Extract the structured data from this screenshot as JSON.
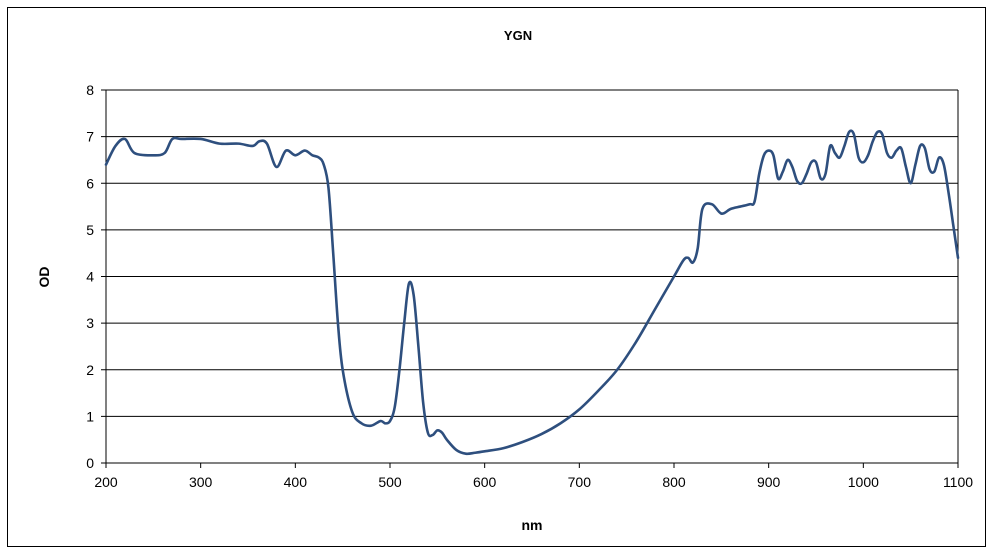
{
  "chart_data": {
    "type": "line",
    "title": "YGN",
    "xlabel": "nm",
    "ylabel": "OD",
    "xlim": [
      200,
      1100
    ],
    "ylim": [
      0,
      8
    ],
    "xticks": [
      200,
      300,
      400,
      500,
      600,
      700,
      800,
      900,
      1000,
      1100
    ],
    "yticks": [
      0,
      1,
      2,
      3,
      4,
      5,
      6,
      7,
      8
    ],
    "grid": "horizontal",
    "legend": "none",
    "colors": {
      "line": "#2e4f7e",
      "grid": "#000000",
      "axis": "#000000"
    },
    "series": [
      {
        "name": "",
        "x": [
          200,
          210,
          220,
          230,
          250,
          262,
          270,
          280,
          300,
          320,
          340,
          355,
          362,
          370,
          380,
          390,
          400,
          410,
          418,
          425,
          430,
          435,
          440,
          445,
          450,
          460,
          470,
          480,
          490,
          495,
          500,
          505,
          510,
          515,
          520,
          525,
          530,
          535,
          540,
          545,
          550,
          555,
          560,
          570,
          580,
          590,
          600,
          620,
          640,
          660,
          680,
          700,
          720,
          740,
          760,
          780,
          800,
          810,
          815,
          820,
          825,
          830,
          840,
          850,
          860,
          870,
          880,
          885,
          890,
          895,
          900,
          905,
          910,
          915,
          920,
          925,
          930,
          935,
          940,
          945,
          950,
          955,
          960,
          965,
          970,
          975,
          980,
          985,
          990,
          995,
          1000,
          1005,
          1010,
          1015,
          1020,
          1025,
          1030,
          1035,
          1040,
          1045,
          1050,
          1055,
          1060,
          1065,
          1070,
          1075,
          1080,
          1085,
          1090,
          1095,
          1100
        ],
        "y": [
          6.4,
          6.8,
          6.95,
          6.65,
          6.6,
          6.65,
          6.95,
          6.95,
          6.95,
          6.85,
          6.85,
          6.8,
          6.9,
          6.85,
          6.35,
          6.7,
          6.6,
          6.7,
          6.6,
          6.55,
          6.4,
          5.9,
          4.5,
          3.0,
          2.0,
          1.1,
          0.85,
          0.8,
          0.9,
          0.85,
          0.9,
          1.2,
          2.0,
          3.0,
          3.85,
          3.6,
          2.5,
          1.3,
          0.65,
          0.6,
          0.7,
          0.65,
          0.5,
          0.28,
          0.2,
          0.22,
          0.25,
          0.32,
          0.45,
          0.62,
          0.85,
          1.15,
          1.55,
          2.0,
          2.6,
          3.3,
          4.0,
          4.35,
          4.4,
          4.3,
          4.6,
          5.45,
          5.55,
          5.35,
          5.45,
          5.5,
          5.55,
          5.6,
          6.2,
          6.6,
          6.7,
          6.6,
          6.1,
          6.25,
          6.5,
          6.35,
          6.05,
          6.0,
          6.2,
          6.45,
          6.45,
          6.1,
          6.2,
          6.8,
          6.65,
          6.55,
          6.8,
          7.1,
          7.05,
          6.55,
          6.45,
          6.6,
          6.9,
          7.1,
          7.05,
          6.65,
          6.55,
          6.7,
          6.75,
          6.35,
          6.0,
          6.4,
          6.8,
          6.75,
          6.3,
          6.25,
          6.55,
          6.4,
          5.8,
          5.1,
          4.4
        ]
      }
    ]
  }
}
